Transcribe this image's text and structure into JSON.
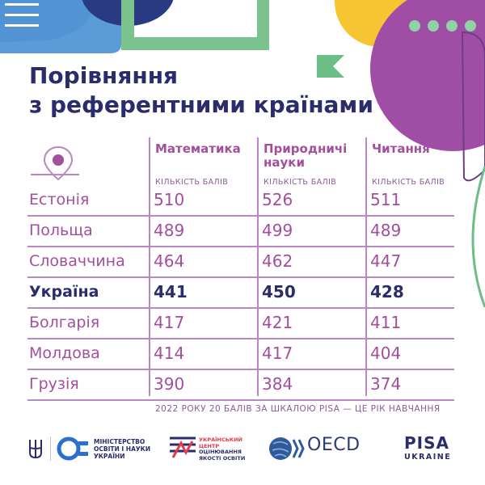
{
  "title": {
    "line1": "Порівняння",
    "line2": "з референтними країнами"
  },
  "columns": [
    {
      "label": "Математика",
      "label_line2": "",
      "hint": "КІЛЬКІСТЬ БАЛІВ"
    },
    {
      "label": "Природничі",
      "label_line2": "науки",
      "hint": "КІЛЬКІСТЬ БАЛІВ"
    },
    {
      "label": "Читання",
      "label_line2": "",
      "hint": "КІЛЬКІСТЬ БАЛІВ"
    }
  ],
  "rows": [
    {
      "country": "Естонія",
      "values": [
        "510",
        "526",
        "511"
      ]
    },
    {
      "country": "Польща",
      "values": [
        "489",
        "499",
        "489"
      ]
    },
    {
      "country": "Словаччина",
      "values": [
        "464",
        "462",
        "447"
      ]
    },
    {
      "country": "Україна",
      "values": [
        "441",
        "450",
        "428"
      ],
      "highlight": true
    },
    {
      "country": "Болгарія",
      "values": [
        "417",
        "421",
        "411"
      ]
    },
    {
      "country": "Молдова",
      "values": [
        "414",
        "417",
        "404"
      ]
    },
    {
      "country": "Грузія",
      "values": [
        "390",
        "384",
        "374"
      ]
    }
  ],
  "footnote": "2022 РОКУ 20 БАЛІВ ЗА ШКАЛОЮ PISA — ЦЕ РІК НАВЧАННЯ",
  "footer": {
    "ministry": {
      "line1": "МІНІСТЕРСТВО",
      "line2": "ОСВІТИ І НАУКИ",
      "line3": "УКРАЇНИ"
    },
    "ucozo": {
      "line1": "УКРАЇНСЬКИЙ",
      "line2": "ЦЕНТР",
      "line3": "ОЦІНЮВАННЯ",
      "line4": "ЯКОСТІ ОСВІТИ"
    },
    "oecd": "OECD",
    "pisa": "PISA",
    "pisa_sub": "UKRAINE"
  },
  "colors": {
    "navy": "#2a2c6b",
    "purple": "#a44e9e",
    "lavender": "#b987c2",
    "green": "#6bbf86",
    "yellow": "#f7c531",
    "blue": "#5a9bd8",
    "violet": "#a04ea5"
  },
  "icons": [
    "location-pin-icon",
    "trident-icon",
    "mon-logo-icon",
    "ucozo-logo-icon",
    "oecd-globe-icon"
  ]
}
